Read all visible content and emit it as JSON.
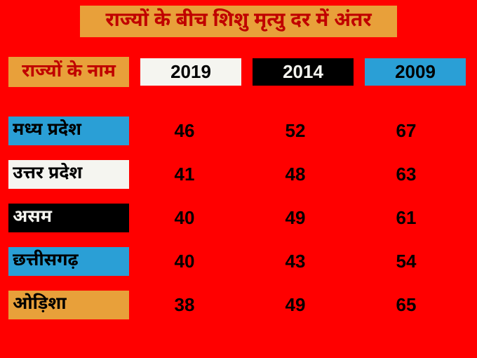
{
  "title": "राज्यों के बीच शिशु मृत्यु दर में अंतर",
  "title_bg": "#e8a03a",
  "title_color": "#c00000",
  "background": "#ff0000",
  "headers": {
    "name": {
      "label": "राज्यों के नाम",
      "bg": "#e8a03a",
      "color": "#c00000"
    },
    "y2019": {
      "label": "2019",
      "bg": "#f5f5f0",
      "color": "#000000"
    },
    "y2014": {
      "label": "2014",
      "bg": "#000000",
      "color": "#f5f5f0"
    },
    "y2009": {
      "label": "2009",
      "bg": "#2a9fd6",
      "color": "#000000"
    }
  },
  "rows": [
    {
      "state": "मध्य प्रदेश",
      "v2019": "46",
      "v2014": "52",
      "v2009": "67",
      "state_bg": "#2a9fd6",
      "state_color": "#000000",
      "v2019_color": "#000000",
      "v2014_color": "#000000",
      "v2009_color": "#000000"
    },
    {
      "state": "उत्तर प्रदेश",
      "v2019": "41",
      "v2014": "48",
      "v2009": "63",
      "state_bg": "#f5f5f0",
      "state_color": "#000000",
      "v2019_color": "#000000",
      "v2014_color": "#000000",
      "v2009_color": "#000000"
    },
    {
      "state": "असम",
      "v2019": "40",
      "v2014": "49",
      "v2009": "61",
      "state_bg": "#000000",
      "state_color": "#f5f5f0",
      "v2019_color": "#000000",
      "v2014_color": "#000000",
      "v2009_color": "#000000"
    },
    {
      "state": "छत्तीसगढ़",
      "v2019": "40",
      "v2014": "43",
      "v2009": "54",
      "state_bg": "#2a9fd6",
      "state_color": "#000000",
      "v2019_color": "#000000",
      "v2014_color": "#000000",
      "v2009_color": "#000000"
    },
    {
      "state": "ओड़िशा",
      "v2019": "38",
      "v2014": "49",
      "v2009": "65",
      "state_bg": "#e8a03a",
      "state_color": "#000000",
      "v2019_color": "#000000",
      "v2014_color": "#000000",
      "v2009_color": "#000000"
    }
  ]
}
